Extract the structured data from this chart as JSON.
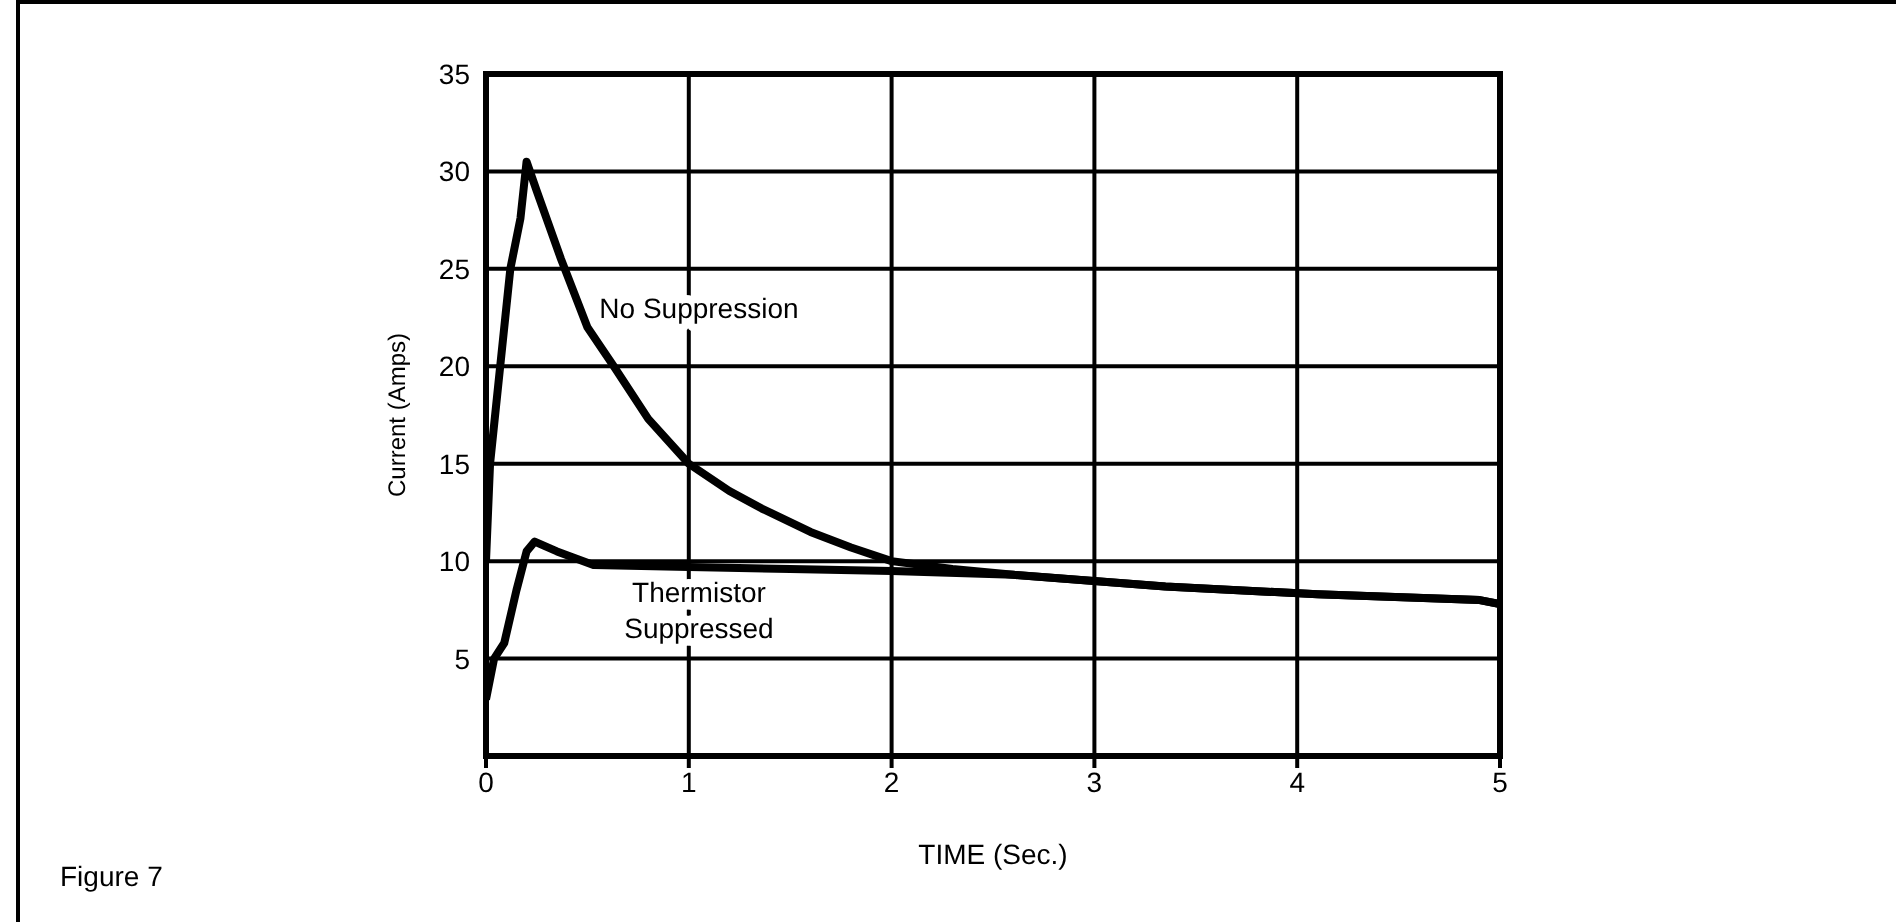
{
  "chart_data": {
    "type": "line",
    "xlabel": "TIME (Sec.)",
    "ylabel": "Current (Amps)",
    "annotations": [
      "Figure 7"
    ],
    "xlim": [
      0,
      5
    ],
    "xticks": [
      0,
      1,
      2,
      3,
      4,
      5
    ],
    "ylim": [
      0,
      35
    ],
    "yticks": [
      5,
      10,
      15,
      20,
      25,
      30,
      35
    ],
    "grid": true,
    "legend": false,
    "marker": "none",
    "line_style": "solid",
    "series": [
      {
        "name": "No Suppression",
        "color": "#000000",
        "x": [
          0,
          0.02,
          0.07,
          0.12,
          0.17,
          0.2,
          0.25,
          0.37,
          0.5,
          0.63,
          0.8,
          1.0,
          1.2,
          1.36,
          1.6,
          1.8,
          2.0,
          2.3,
          2.6,
          3.35,
          4.1,
          4.9,
          5
        ],
        "values": [
          10,
          15,
          20,
          25,
          27.6,
          30.5,
          29,
          25.5,
          22,
          20,
          17.3,
          15,
          13.6,
          12.7,
          11.5,
          10.7,
          10,
          9.6,
          9.3,
          8.7,
          8.3,
          8.0,
          7.8
        ]
      },
      {
        "name": "Thermistor Suppressed",
        "color": "#000000",
        "x": [
          0,
          0.04,
          0.09,
          0.15,
          0.2,
          0.24,
          0.35,
          0.53,
          1.0,
          1.5,
          2.0,
          2.6,
          3.35,
          4.1,
          4.9,
          5
        ],
        "values": [
          2.9,
          5,
          5.8,
          8.5,
          10.5,
          11,
          10.5,
          9.8,
          9.7,
          9.6,
          9.5,
          9.3,
          8.7,
          8.3,
          8.0,
          7.8
        ]
      }
    ]
  }
}
